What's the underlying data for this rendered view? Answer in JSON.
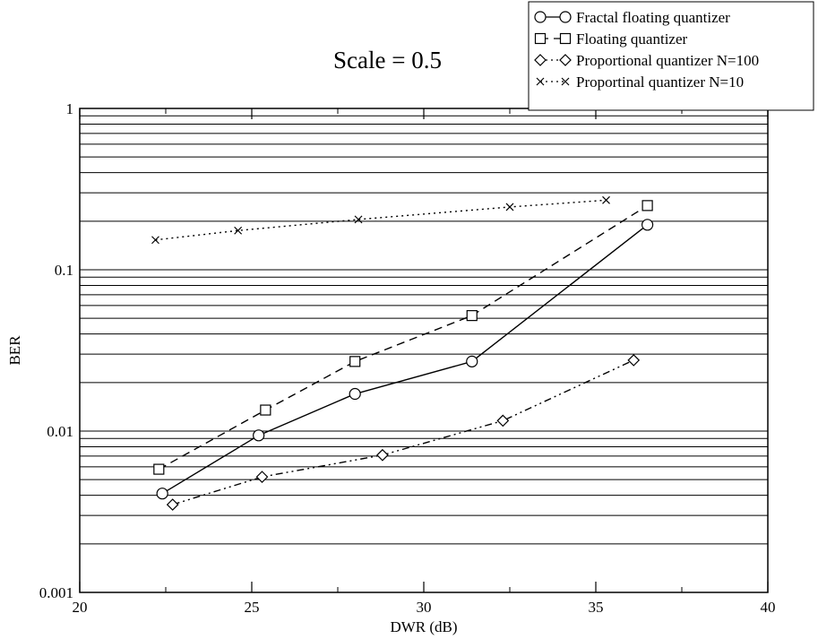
{
  "chart_data": {
    "type": "line",
    "title": "Scale = 0.5",
    "xlabel": "DWR (dB)",
    "ylabel": "BER",
    "xlim": [
      20,
      40
    ],
    "ylim": [
      0.001,
      1
    ],
    "yscale": "log",
    "grid": "horizontal",
    "legend_position": "top-right",
    "x_ticks": [
      "20",
      "25",
      "30",
      "35",
      "40"
    ],
    "y_ticks": [
      "0.001",
      "0.01",
      "0.1",
      "1"
    ],
    "series": [
      {
        "name": "Fractal floating quantizer",
        "marker": "circle",
        "line": "solid",
        "x": [
          22.4,
          25.2,
          28.0,
          31.4,
          36.5
        ],
        "y": [
          0.0041,
          0.0094,
          0.017,
          0.027,
          0.19
        ]
      },
      {
        "name": "Floating quantizer",
        "marker": "square",
        "line": "dashed",
        "x": [
          22.3,
          25.4,
          28.0,
          31.4,
          36.5
        ],
        "y": [
          0.0058,
          0.0135,
          0.027,
          0.052,
          0.25
        ]
      },
      {
        "name": "Proportional quantizer N=100",
        "marker": "diamond",
        "line": "dash-dot-dot",
        "x": [
          22.7,
          25.3,
          28.8,
          32.3,
          36.1
        ],
        "y": [
          0.0035,
          0.0052,
          0.0071,
          0.0116,
          0.0275
        ]
      },
      {
        "name": "Proportinal quantizer N=10",
        "marker": "cross",
        "line": "dotted",
        "x": [
          22.2,
          24.6,
          28.1,
          32.5,
          35.3
        ],
        "y": [
          0.153,
          0.175,
          0.205,
          0.245,
          0.27
        ]
      }
    ]
  }
}
